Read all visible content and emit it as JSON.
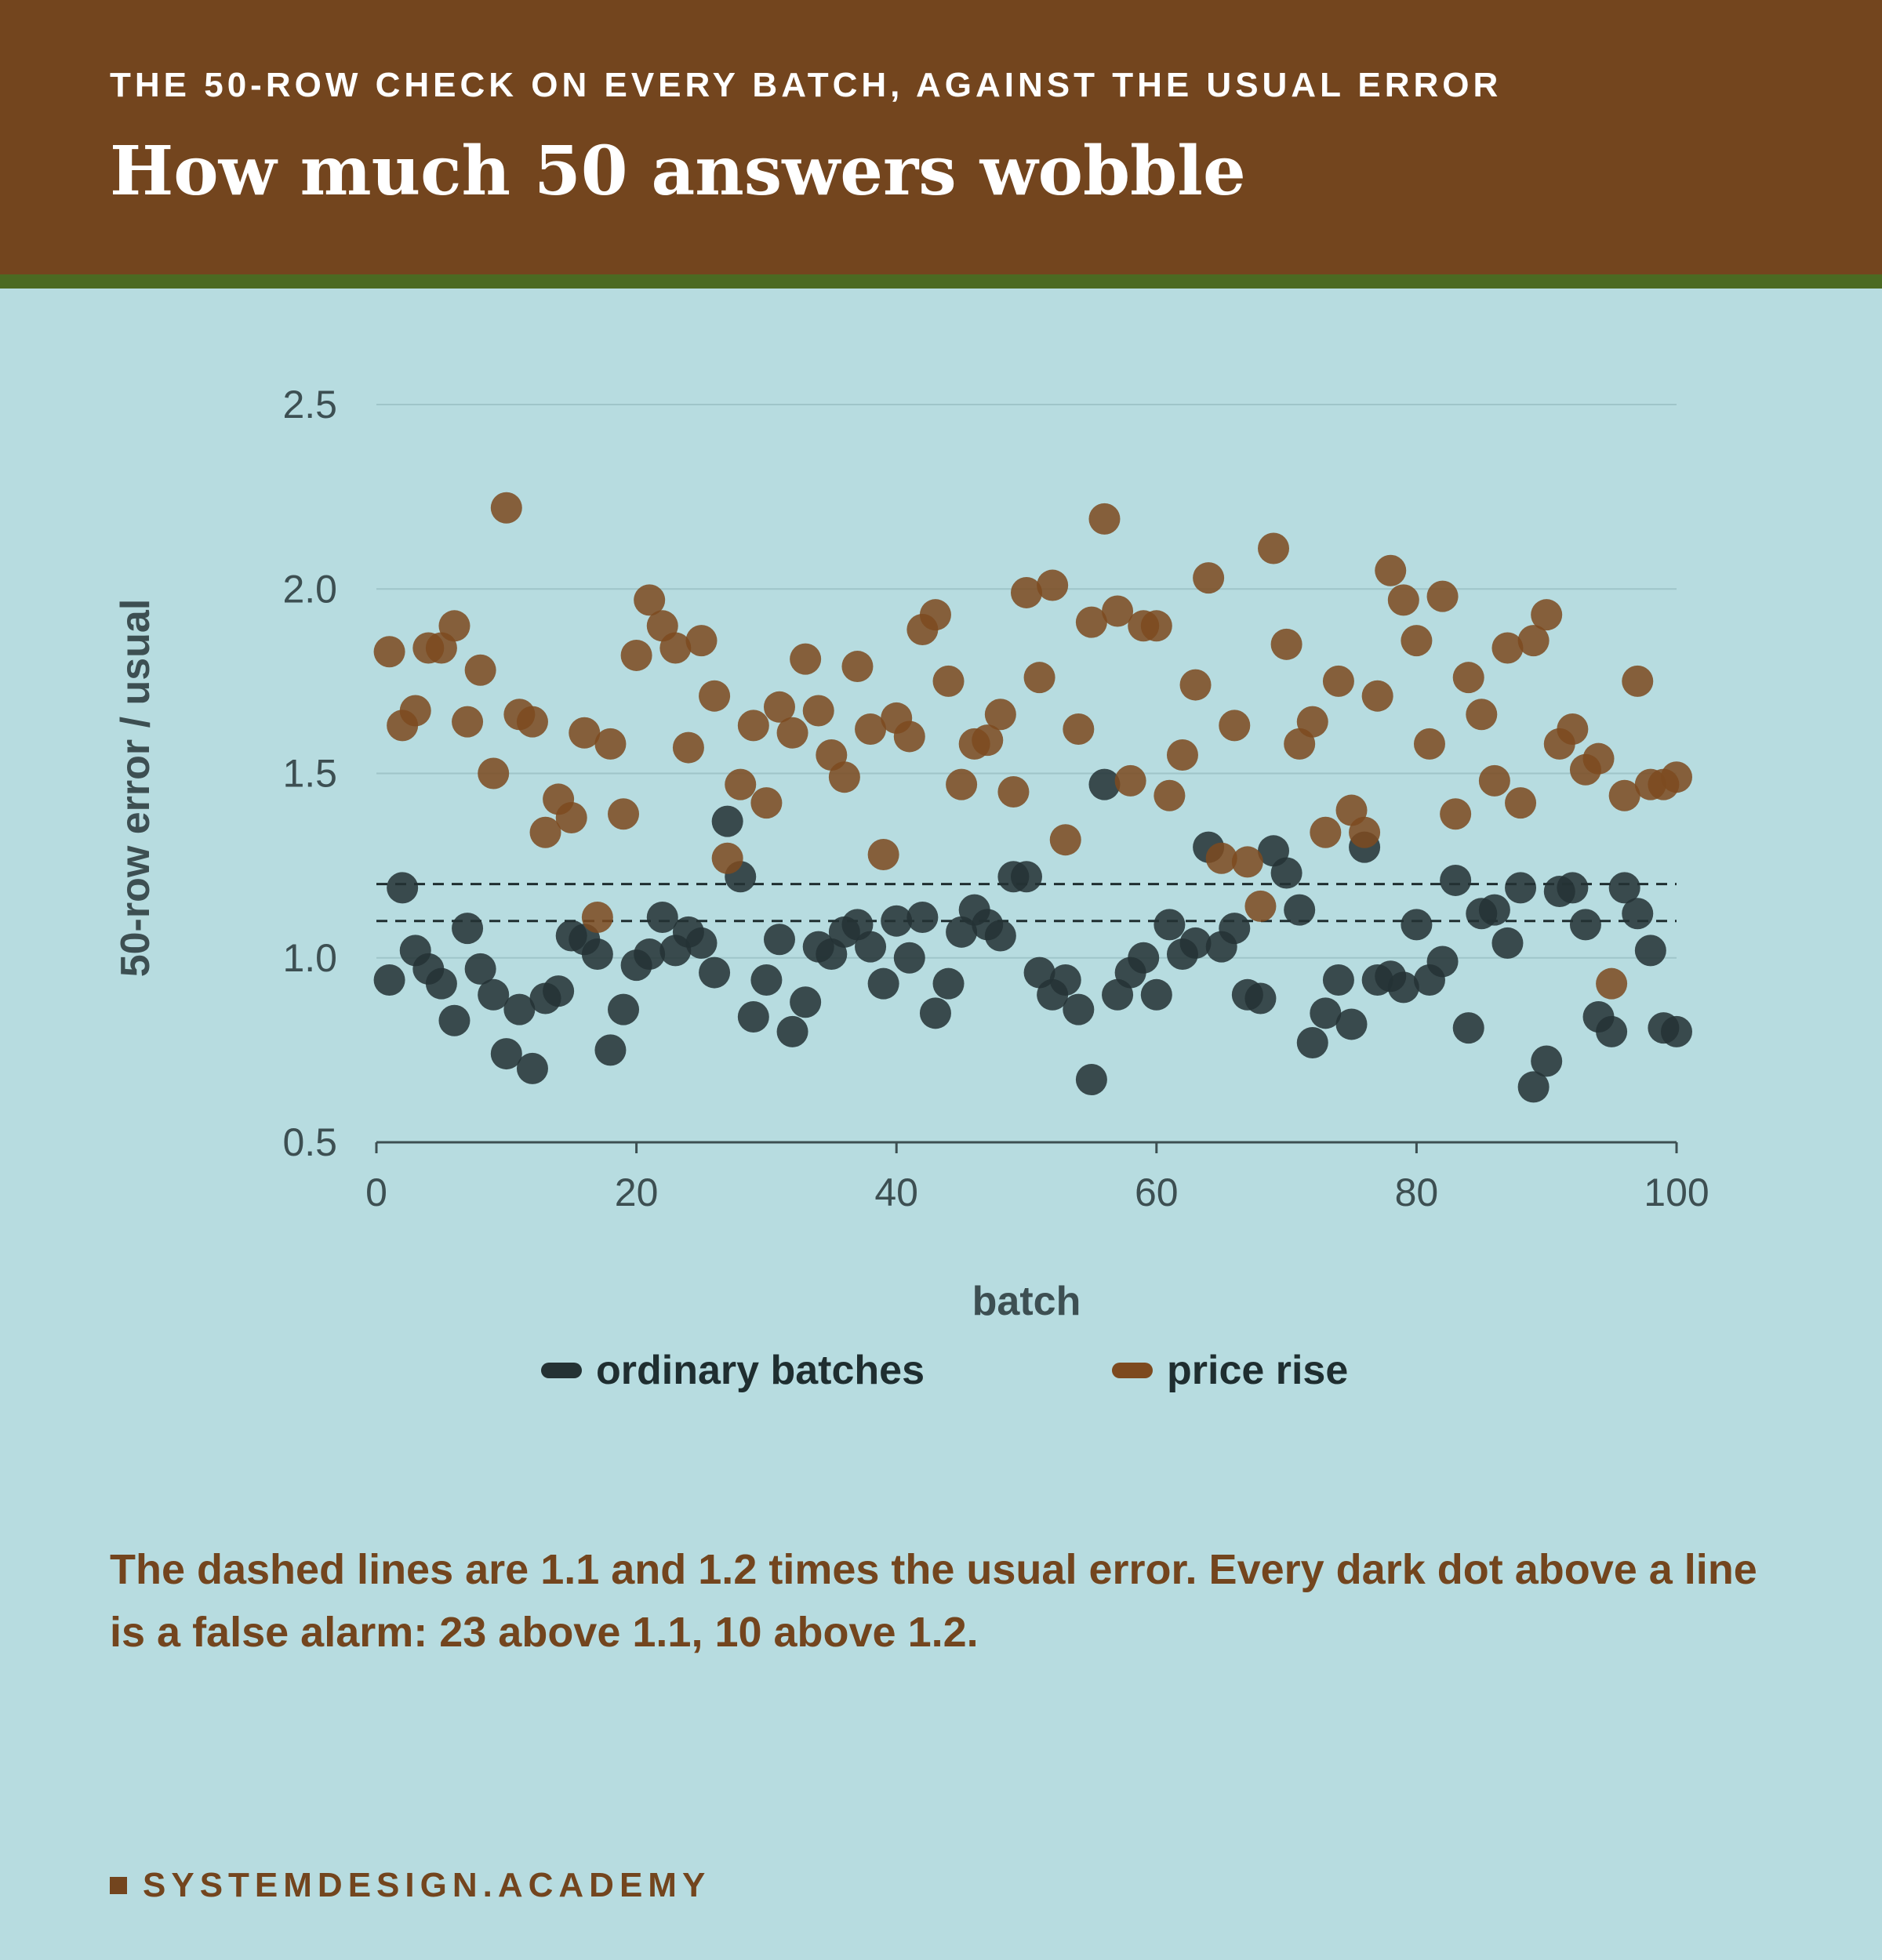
{
  "header": {
    "kicker": "THE 50-ROW CHECK ON EVERY BATCH, AGAINST THE USUAL ERROR",
    "title": "How much 50 answers wobble"
  },
  "colors": {
    "header_bg": "#73451e",
    "header_rule": "#4b6a22",
    "background": "#b7dce0",
    "ordinary": "#243234",
    "price_rise": "#7d4a1f",
    "axis_text": "#3d4f52"
  },
  "chart_data": {
    "type": "scatter",
    "xlabel": "batch",
    "ylabel": "50-row error / usual",
    "xlim": [
      0,
      100
    ],
    "ylim": [
      0.5,
      2.5
    ],
    "xticks": [
      0,
      20,
      40,
      60,
      80,
      100
    ],
    "yticks": [
      0.5,
      1.0,
      1.5,
      2.0,
      2.5
    ],
    "ytick_labels": [
      "0.5",
      "1.0",
      "1.5",
      "2.0",
      "2.5"
    ],
    "grid": "horizontal",
    "reference_lines": [
      1.1,
      1.2
    ],
    "legend_position": "bottom-center",
    "series": [
      {
        "name": "ordinary batches",
        "color": "#243234",
        "x": [
          1,
          2,
          3,
          4,
          5,
          6,
          7,
          8,
          9,
          10,
          11,
          12,
          13,
          14,
          15,
          16,
          17,
          18,
          19,
          20,
          21,
          22,
          23,
          24,
          25,
          26,
          27,
          28,
          29,
          30,
          31,
          32,
          33,
          34,
          35,
          36,
          37,
          38,
          39,
          40,
          41,
          42,
          43,
          44,
          45,
          46,
          47,
          48,
          49,
          50,
          51,
          52,
          53,
          54,
          55,
          56,
          57,
          58,
          59,
          60,
          61,
          62,
          63,
          64,
          65,
          66,
          67,
          68,
          69,
          70,
          71,
          72,
          73,
          74,
          75,
          76,
          77,
          78,
          79,
          80,
          81,
          82,
          83,
          84,
          85,
          86,
          87,
          88,
          89,
          90,
          91,
          92,
          93,
          94,
          95,
          96,
          97,
          98,
          99,
          100
        ],
        "y": [
          0.94,
          1.19,
          1.02,
          0.97,
          0.93,
          0.83,
          1.08,
          0.97,
          0.9,
          0.74,
          0.86,
          0.7,
          0.89,
          0.91,
          1.06,
          1.05,
          1.01,
          0.75,
          0.86,
          0.98,
          1.01,
          1.11,
          1.02,
          1.07,
          1.04,
          0.96,
          1.37,
          1.22,
          0.84,
          0.94,
          1.05,
          0.8,
          0.88,
          1.03,
          1.01,
          1.07,
          1.09,
          1.03,
          0.93,
          1.1,
          1.0,
          1.11,
          0.85,
          0.93,
          1.07,
          1.13,
          1.09,
          1.06,
          1.22,
          1.22,
          0.96,
          0.9,
          0.94,
          0.86,
          0.67,
          1.47,
          0.9,
          0.96,
          1.0,
          0.9,
          1.09,
          1.01,
          1.04,
          1.3,
          1.03,
          1.08,
          0.9,
          0.89,
          1.29,
          1.23,
          1.13,
          0.77,
          0.85,
          0.94,
          0.82,
          1.3,
          0.94,
          0.95,
          0.92,
          1.09,
          0.94,
          0.99,
          1.21,
          0.81,
          1.12,
          1.13,
          1.04,
          1.19,
          0.65,
          0.72,
          1.18,
          1.19,
          1.09,
          0.84,
          0.8,
          1.19,
          1.12,
          1.02,
          0.81,
          0.8
        ]
      },
      {
        "name": "price rise",
        "color": "#7d4a1f",
        "x": [
          1,
          2,
          3,
          4,
          5,
          6,
          7,
          8,
          9,
          10,
          11,
          12,
          13,
          14,
          15,
          16,
          17,
          18,
          19,
          20,
          21,
          22,
          23,
          24,
          25,
          26,
          27,
          28,
          29,
          30,
          31,
          32,
          33,
          34,
          35,
          36,
          37,
          38,
          39,
          40,
          41,
          42,
          43,
          44,
          45,
          46,
          47,
          48,
          49,
          50,
          51,
          52,
          53,
          54,
          55,
          56,
          57,
          58,
          59,
          60,
          61,
          62,
          63,
          64,
          65,
          66,
          67,
          68,
          69,
          70,
          71,
          72,
          73,
          74,
          75,
          76,
          77,
          78,
          79,
          80,
          81,
          82,
          83,
          84,
          85,
          86,
          87,
          88,
          89,
          90,
          91,
          92,
          93,
          94,
          95,
          96,
          97,
          98,
          99,
          100
        ],
        "y": [
          1.83,
          1.63,
          1.67,
          1.84,
          1.84,
          1.9,
          1.64,
          1.78,
          1.5,
          2.22,
          1.66,
          1.64,
          1.34,
          1.43,
          1.38,
          1.61,
          1.11,
          1.58,
          1.39,
          1.82,
          1.97,
          1.9,
          1.84,
          1.57,
          1.86,
          1.71,
          1.27,
          1.47,
          1.63,
          1.42,
          1.68,
          1.61,
          1.81,
          1.67,
          1.55,
          1.49,
          1.79,
          1.62,
          1.28,
          1.65,
          1.6,
          1.89,
          1.93,
          1.75,
          1.47,
          1.58,
          1.59,
          1.66,
          1.45,
          1.99,
          1.76,
          2.01,
          1.32,
          1.62,
          1.91,
          2.19,
          1.94,
          1.48,
          1.9,
          1.9,
          1.44,
          1.55,
          1.74,
          2.03,
          1.27,
          1.63,
          1.26,
          1.14,
          2.11,
          1.85,
          1.58,
          1.64,
          1.34,
          1.75,
          1.4,
          1.34,
          1.71,
          2.05,
          1.97,
          1.86,
          1.58,
          1.98,
          1.39,
          1.76,
          1.66,
          1.48,
          1.84,
          1.42,
          1.86,
          1.93,
          1.58,
          1.62,
          1.51,
          1.54,
          0.93,
          1.44,
          1.75,
          1.47,
          1.47,
          1.49
        ]
      }
    ]
  },
  "legend": {
    "ordinary_label": "ordinary batches",
    "price_rise_label": "price rise"
  },
  "note": "The dashed lines are 1.1 and 1.2 times the usual error. Every dark dot above a line is a false alarm: 23 above 1.1, 10 above 1.2.",
  "brand": "SYSTEMDESIGN.ACADEMY"
}
